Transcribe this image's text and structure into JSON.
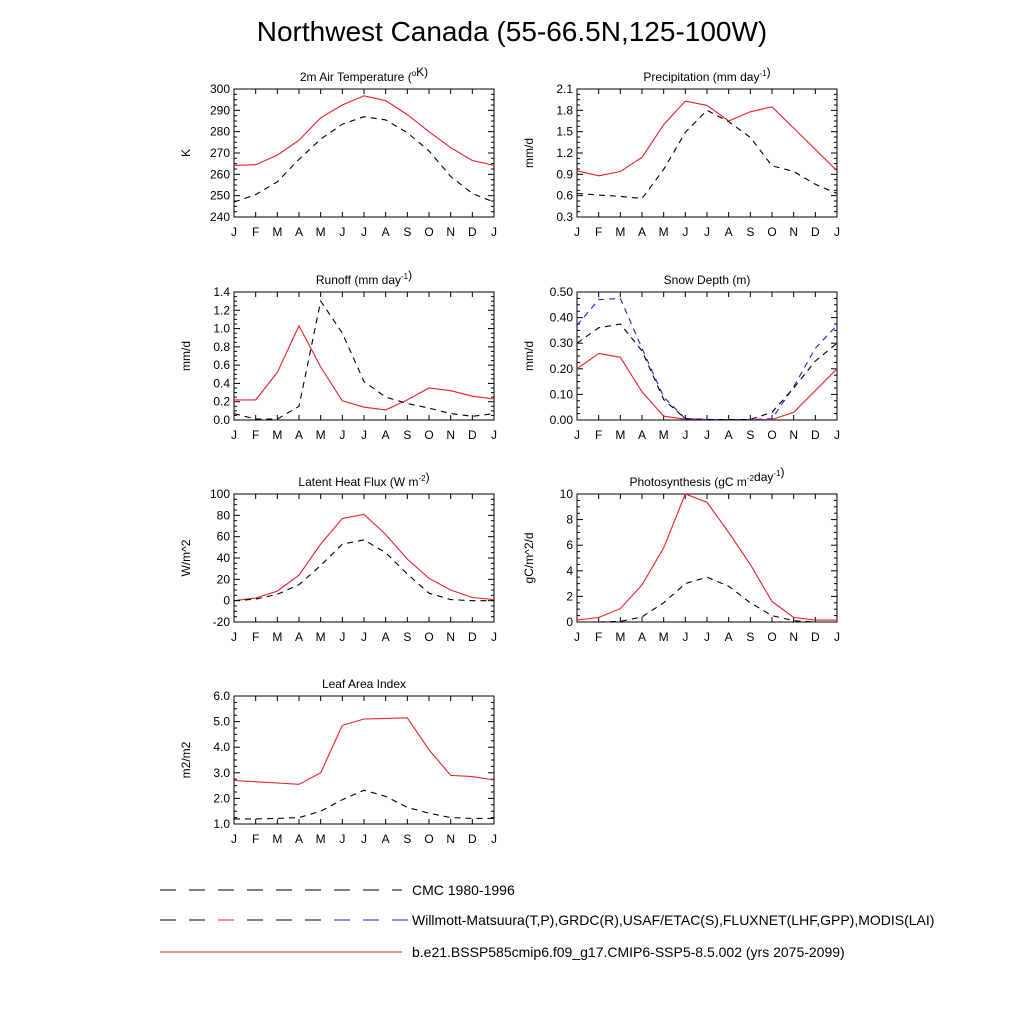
{
  "page": {
    "title": "Northwest Canada (55-66.5N,125-100W)"
  },
  "months": [
    "J",
    "F",
    "M",
    "A",
    "M",
    "J",
    "J",
    "A",
    "S",
    "O",
    "N",
    "D",
    "J"
  ],
  "colors": {
    "model": "#e8202a",
    "obs": "#000000",
    "obs_alt": "#1f1fd6",
    "axis": "#000000"
  },
  "legend": [
    {
      "label": "CMC 1980-1996",
      "style": "dashed-black"
    },
    {
      "label": "Willmott-Matsuura(T,P),GRDC(R),USAF/ETAC(S),FLUXNET(LHF,GPP),MODIS(LAI)",
      "style": "dashed-black-blue"
    },
    {
      "label": "b.e21.BSSP585cmip6.f09_g17.CMIP6-SSP5-8.5.002 (yrs 2075-2099)",
      "style": "solid-red"
    }
  ],
  "chart_data": [
    {
      "id": "temperature",
      "type": "line",
      "title": "2m Air Temperature",
      "title_unit_html": "(<tspan>o</tspan>K)",
      "ylabel": "K",
      "ylim": [
        240,
        300
      ],
      "yticks": [
        240,
        250,
        260,
        270,
        280,
        290,
        300
      ],
      "ytick_labels": [
        "240",
        "250",
        "260",
        "270",
        "280",
        "290",
        "300"
      ],
      "series": [
        {
          "style": "model",
          "values": [
            264.2,
            264.5,
            269,
            276,
            286.5,
            292.5,
            296.8,
            294.5,
            288,
            280,
            272.5,
            266.5,
            264.2
          ]
        },
        {
          "style": "obs",
          "values": [
            247,
            250.5,
            256.5,
            267,
            276.5,
            283.5,
            287,
            285.5,
            279.5,
            271,
            259,
            251,
            247
          ]
        }
      ]
    },
    {
      "id": "precipitation",
      "type": "line",
      "title": "Precipitation",
      "title_unit_html": "(mm day<tspan>-1</tspan>)",
      "ylabel": "mm/d",
      "ylim": [
        0.3,
        2.1
      ],
      "yticks": [
        0.3,
        0.6,
        0.9,
        1.2,
        1.5,
        1.8,
        2.1
      ],
      "ytick_labels": [
        "0.3",
        "0.6",
        "0.9",
        "1.2",
        "1.5",
        "1.8",
        "2.1"
      ],
      "series": [
        {
          "style": "model",
          "values": [
            0.95,
            0.88,
            0.94,
            1.14,
            1.6,
            1.93,
            1.87,
            1.65,
            1.78,
            1.85,
            1.55,
            1.25,
            0.95
          ]
        },
        {
          "style": "obs",
          "values": [
            0.63,
            0.61,
            0.59,
            0.56,
            0.97,
            1.49,
            1.8,
            1.64,
            1.42,
            1.02,
            0.94,
            0.76,
            0.63
          ]
        }
      ]
    },
    {
      "id": "runoff",
      "type": "line",
      "title": "Runoff",
      "title_unit_html": "(mm day<tspan>-1</tspan>)",
      "ylabel": "mm/d",
      "ylim": [
        0,
        1.4
      ],
      "yticks": [
        0,
        0.2,
        0.4,
        0.6,
        0.8,
        1.0,
        1.2,
        1.4
      ],
      "ytick_labels": [
        "0.0",
        "0.2",
        "0.4",
        "0.6",
        "0.8",
        "1.0",
        "1.2",
        "1.4"
      ],
      "series": [
        {
          "style": "model",
          "values": [
            0.22,
            0.22,
            0.52,
            1.03,
            0.58,
            0.21,
            0.14,
            0.11,
            0.22,
            0.35,
            0.32,
            0.26,
            0.23
          ]
        },
        {
          "style": "obs",
          "values": [
            0.07,
            0.01,
            0.01,
            0.15,
            1.3,
            0.95,
            0.42,
            0.25,
            0.18,
            0.13,
            0.07,
            0.04,
            0.07
          ]
        }
      ]
    },
    {
      "id": "snowdepth",
      "type": "line",
      "title": "Snow Depth",
      "title_unit_html": "(m)",
      "ylabel": "mm/d",
      "ylim": [
        0,
        0.5
      ],
      "yticks": [
        0,
        0.1,
        0.2,
        0.3,
        0.4,
        0.5
      ],
      "ytick_labels": [
        "0.00",
        "0.10",
        "0.20",
        "0.30",
        "0.40",
        "0.50"
      ],
      "series": [
        {
          "style": "model",
          "values": [
            0.2,
            0.26,
            0.245,
            0.11,
            0.015,
            0.003,
            0.002,
            0.002,
            0.002,
            0.002,
            0.03,
            0.115,
            0.2
          ]
        },
        {
          "style": "obs_alt",
          "values": [
            0.37,
            0.47,
            0.475,
            0.28,
            0.09,
            0.005,
            0.002,
            0.002,
            0.002,
            0.005,
            0.13,
            0.28,
            0.37
          ]
        },
        {
          "style": "obs",
          "values": [
            0.3,
            0.36,
            0.375,
            0.27,
            0.08,
            0.005,
            0.002,
            0.002,
            0.002,
            0.03,
            0.125,
            0.23,
            0.3
          ]
        }
      ]
    },
    {
      "id": "latentheat",
      "type": "line",
      "title": "Latent Heat Flux",
      "title_unit_html": "(W m<tspan>-2</tspan>)",
      "ylabel": "W/m^2",
      "ylim": [
        -20,
        100
      ],
      "yticks": [
        -20,
        0,
        20,
        40,
        60,
        80,
        100
      ],
      "ytick_labels": [
        "-20",
        "0",
        "20",
        "40",
        "60",
        "80",
        "100"
      ],
      "series": [
        {
          "style": "model",
          "values": [
            0,
            2.5,
            9,
            24,
            53,
            77,
            81,
            62,
            39,
            21,
            10,
            3,
            1
          ]
        },
        {
          "style": "obs",
          "values": [
            0,
            1.5,
            6,
            15,
            33,
            53,
            57,
            45,
            25,
            7,
            1,
            0,
            0
          ]
        }
      ]
    },
    {
      "id": "photosynthesis",
      "type": "line",
      "title": "Photosynthesis",
      "title_unit_html": "(gC m<tspan>-2</tspan>day<tspan>-1</tspan>)",
      "ylabel": "gC/m^2/d",
      "ylim": [
        0,
        10
      ],
      "yticks": [
        0,
        2,
        4,
        6,
        8,
        10
      ],
      "ytick_labels": [
        "0",
        "2",
        "4",
        "6",
        "8",
        "10"
      ],
      "series": [
        {
          "style": "model",
          "values": [
            0.15,
            0.35,
            1.05,
            2.9,
            5.8,
            10.0,
            9.35,
            7.0,
            4.5,
            1.6,
            0.35,
            0.15,
            0.15
          ]
        },
        {
          "style": "obs",
          "values": [
            0,
            0,
            0.05,
            0.4,
            1.5,
            3.0,
            3.5,
            2.8,
            1.5,
            0.5,
            0.1,
            0,
            0
          ]
        }
      ]
    },
    {
      "id": "lai",
      "type": "line",
      "title": "Leaf Area Index",
      "title_unit_html": "",
      "ylabel": "m2/m2",
      "ylim": [
        1,
        6
      ],
      "yticks": [
        1,
        2,
        3,
        4,
        5,
        6
      ],
      "ytick_labels": [
        "1.0",
        "2.0",
        "3.0",
        "4.0",
        "5.0",
        "6.0"
      ],
      "series": [
        {
          "style": "model",
          "values": [
            2.7,
            2.65,
            2.6,
            2.55,
            3.0,
            4.85,
            5.1,
            5.12,
            5.15,
            3.9,
            2.9,
            2.85,
            2.72
          ]
        },
        {
          "style": "obs",
          "values": [
            1.2,
            1.2,
            1.22,
            1.25,
            1.5,
            1.95,
            2.32,
            2.08,
            1.65,
            1.42,
            1.25,
            1.22,
            1.22
          ]
        }
      ]
    }
  ]
}
